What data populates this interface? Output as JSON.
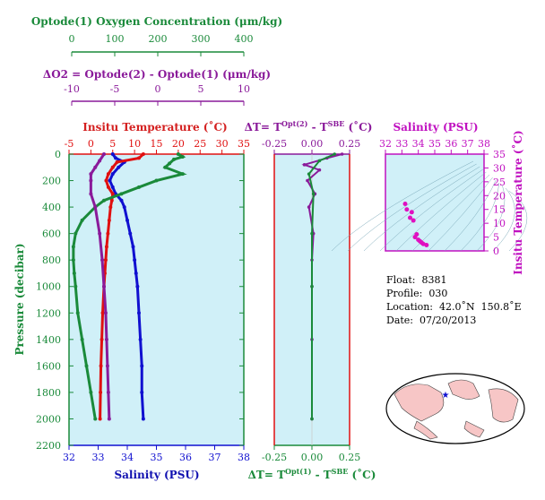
{
  "o2_axis": {
    "title": "Optode(1) Oxygen Concentration (μm/kg)",
    "ticks": [
      "0",
      "100",
      "200",
      "300",
      "400"
    ]
  },
  "do2_axis": {
    "title": "ΔO2 = Optode(2) - Optode(1)     (μm/kg)",
    "ticks": [
      "-10",
      "-5",
      "0",
      "5",
      "10"
    ]
  },
  "temp_axis": {
    "title": "Insitu Temperature (˚C)",
    "ticks": [
      "-5",
      "0",
      "5",
      "10",
      "15",
      "20",
      "25",
      "30",
      "35"
    ]
  },
  "sal_axis": {
    "title": "Salinity (PSU)",
    "ticks": [
      "32",
      "33",
      "34",
      "35",
      "36",
      "37",
      "38"
    ]
  },
  "pres_axis": {
    "title": "Pressure (decibar)",
    "ticks": [
      "0",
      "200",
      "400",
      "600",
      "800",
      "1000",
      "1200",
      "1400",
      "1600",
      "1800",
      "2000",
      "2200"
    ]
  },
  "dt_top": {
    "title_main": "ΔT= T",
    "sup1": "Opt(2)",
    "mid": " - T",
    "sup2": "SBE",
    "unit": " (˚C)",
    "ticks": [
      "-0.25",
      "0.00",
      "0.25"
    ]
  },
  "dt_bottom": {
    "title_main": "ΔT= T",
    "sup1": "Opt(1)",
    "mid": " - T",
    "sup2": "SBE",
    "unit": " (˚C)",
    "ticks": [
      "-0.25",
      "0.00",
      "0.25"
    ]
  },
  "ts_plot": {
    "xlabel": "Salinity (PSU)",
    "ylabel": "Insitu Temperature (˚C)",
    "xticks": [
      "32",
      "33",
      "34",
      "35",
      "36",
      "37",
      "38"
    ],
    "yticks": [
      "0",
      "5",
      "10",
      "15",
      "20",
      "25",
      "30",
      "35"
    ]
  },
  "info": {
    "float": "Float:  8381",
    "profile": "Profile:  030",
    "location": "Location:  42.0˚N  150.8˚E",
    "date": "Date:  07/20/2013"
  },
  "colors": {
    "oxygen": "#1a8a3a",
    "delta_o2": "#8a1a9a",
    "temperature": "#e01010",
    "salinity": "#1010d0",
    "ts": "#e010c0",
    "panel_bg": "#d0f0f8"
  },
  "chart_data": [
    {
      "type": "scatter",
      "ylabel": "Pressure (decibar)",
      "ylim": [
        2200,
        0
      ],
      "series": [
        {
          "name": "Salinity (PSU)",
          "x_range": [
            32,
            38
          ],
          "points": [
            [
              33.5,
              0
            ],
            [
              33.6,
              30
            ],
            [
              33.9,
              60
            ],
            [
              33.7,
              100
            ],
            [
              33.5,
              150
            ],
            [
              33.4,
              200
            ],
            [
              33.5,
              250
            ],
            [
              33.6,
              300
            ],
            [
              33.8,
              350
            ],
            [
              33.9,
              400
            ],
            [
              34.0,
              500
            ],
            [
              34.1,
              600
            ],
            [
              34.2,
              700
            ],
            [
              34.25,
              800
            ],
            [
              34.3,
              900
            ],
            [
              34.35,
              1000
            ],
            [
              34.4,
              1200
            ],
            [
              34.45,
              1400
            ],
            [
              34.5,
              1600
            ],
            [
              34.5,
              1800
            ],
            [
              34.55,
              2000
            ]
          ]
        },
        {
          "name": "Insitu Temperature (˚C)",
          "x_range": [
            -5,
            35
          ],
          "points": [
            [
              12,
              0
            ],
            [
              11,
              30
            ],
            [
              6,
              60
            ],
            [
              5,
              100
            ],
            [
              4,
              150
            ],
            [
              3.5,
              200
            ],
            [
              4,
              250
            ],
            [
              5,
              300
            ],
            [
              4.8,
              350
            ],
            [
              4.5,
              400
            ],
            [
              4.2,
              500
            ],
            [
              3.9,
              600
            ],
            [
              3.6,
              700
            ],
            [
              3.4,
              800
            ],
            [
              3.2,
              900
            ],
            [
              3.0,
              1000
            ],
            [
              2.7,
              1200
            ],
            [
              2.5,
              1400
            ],
            [
              2.3,
              1600
            ],
            [
              2.2,
              1800
            ],
            [
              2.1,
              2000
            ]
          ]
        },
        {
          "name": "Optode(1) Oxygen Concentration (μm/kg)",
          "x_range": [
            0,
            400
          ],
          "points": [
            [
              250,
              0
            ],
            [
              260,
              20
            ],
            [
              240,
              40
            ],
            [
              230,
              70
            ],
            [
              220,
              100
            ],
            [
              260,
              150
            ],
            [
              200,
              200
            ],
            [
              160,
              250
            ],
            [
              120,
              300
            ],
            [
              80,
              350
            ],
            [
              60,
              400
            ],
            [
              30,
              500
            ],
            [
              15,
              600
            ],
            [
              10,
              700
            ],
            [
              10,
              800
            ],
            [
              12,
              900
            ],
            [
              15,
              1000
            ],
            [
              20,
              1200
            ],
            [
              30,
              1400
            ],
            [
              40,
              1600
            ],
            [
              50,
              1800
            ],
            [
              60,
              2000
            ]
          ]
        },
        {
          "name": "ΔO2 = Optode(2) - Optode(1)",
          "x_range": [
            -10,
            10
          ],
          "points": [
            [
              -6,
              0
            ],
            [
              -6.5,
              50
            ],
            [
              -7,
              100
            ],
            [
              -7.5,
              150
            ],
            [
              -7.5,
              200
            ],
            [
              -7.5,
              300
            ],
            [
              -7,
              400
            ],
            [
              -6.5,
              600
            ],
            [
              -6.2,
              800
            ],
            [
              -6,
              1000
            ],
            [
              -5.8,
              1200
            ],
            [
              -5.7,
              1400
            ],
            [
              -5.6,
              1600
            ],
            [
              -5.5,
              1800
            ],
            [
              -5.4,
              2000
            ]
          ]
        }
      ]
    },
    {
      "type": "scatter",
      "ylabel": "Pressure (decibar)",
      "xlim": [
        -0.25,
        0.25
      ],
      "series": [
        {
          "name": "ΔT Opt(2)",
          "points": [
            [
              0.2,
              0
            ],
            [
              0.1,
              30
            ],
            [
              -0.05,
              80
            ],
            [
              0.05,
              120
            ],
            [
              -0.03,
              200
            ],
            [
              0.02,
              300
            ],
            [
              -0.02,
              400
            ],
            [
              0.01,
              600
            ],
            [
              0.0,
              800
            ],
            [
              0.0,
              1000
            ],
            [
              0.0,
              1400
            ],
            [
              0.0,
              2000
            ]
          ]
        },
        {
          "name": "ΔT Opt(1)",
          "points": [
            [
              0.15,
              0
            ],
            [
              0.05,
              50
            ],
            [
              -0.02,
              150
            ],
            [
              0.01,
              300
            ],
            [
              0.0,
              600
            ],
            [
              0.0,
              1000
            ],
            [
              0.0,
              2000
            ]
          ]
        }
      ]
    },
    {
      "type": "scatter",
      "xlabel": "Salinity (PSU)",
      "ylabel": "Insitu Temperature (˚C)",
      "xlim": [
        32,
        38
      ],
      "ylim": [
        0,
        35
      ],
      "points": [
        [
          33.5,
          12
        ],
        [
          33.7,
          11
        ],
        [
          33.9,
          6
        ],
        [
          33.8,
          5
        ],
        [
          34.0,
          4
        ],
        [
          34.1,
          3.5
        ],
        [
          34.2,
          3
        ],
        [
          34.3,
          2.5
        ],
        [
          34.5,
          2.1
        ],
        [
          33.2,
          17
        ],
        [
          33.3,
          15
        ],
        [
          33.6,
          14
        ]
      ]
    }
  ]
}
